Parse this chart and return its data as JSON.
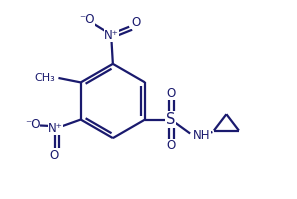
{
  "bg_color": "#ffffff",
  "line_color": "#1a1a6e",
  "line_width": 1.6,
  "font_size": 8.5,
  "fig_width": 2.97,
  "fig_height": 1.99,
  "dpi": 100,
  "xlim": [
    0,
    10
  ],
  "ylim": [
    0,
    6.7
  ]
}
